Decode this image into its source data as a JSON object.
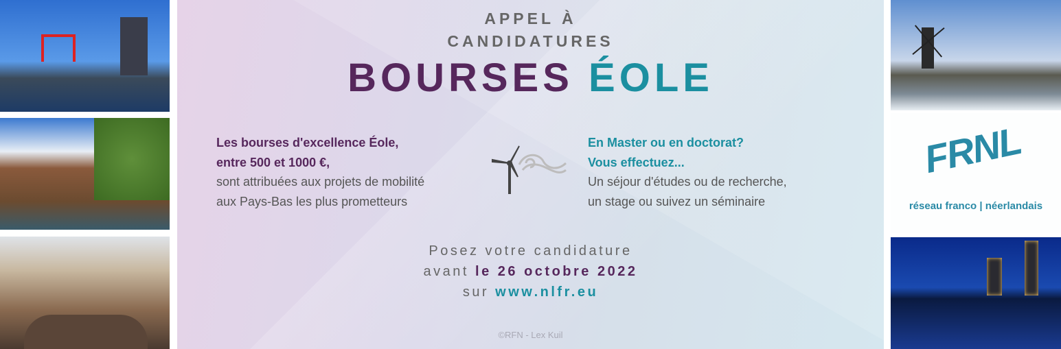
{
  "header": {
    "kicker_line1": "APPEL À",
    "kicker_line2": "CANDIDATURES",
    "title_part1": "BOURSES",
    "title_part2": "ÉOLE"
  },
  "left_block": {
    "line1": "Les bourses d'excellence Éole,",
    "line2": "entre 500 et 1000 €,",
    "line3": "sont attribuées aux projets de mobilité",
    "line4": "aux Pays-Bas les plus prometteurs"
  },
  "right_block": {
    "line1": "En Master ou en doctorat?",
    "line2": "Vous effectuez...",
    "line3": "Un séjour d'études ou de recherche,",
    "line4": "un stage ou suivez un séminaire"
  },
  "cta": {
    "line1": "Posez votre candidature",
    "line2_prefix": "avant",
    "deadline": "le 26 octobre 2022",
    "line3_prefix": "sur",
    "website": "www.nlfr.eu"
  },
  "credit": "©RFN - Lex Kuil",
  "logo": {
    "text": "FRNL",
    "tagline": "réseau franco | néerlandais"
  },
  "icons": {
    "wind": "wind-turbine-icon"
  },
  "colors": {
    "purple": "#56275c",
    "teal": "#1b8fa0",
    "gray": "#666666"
  }
}
